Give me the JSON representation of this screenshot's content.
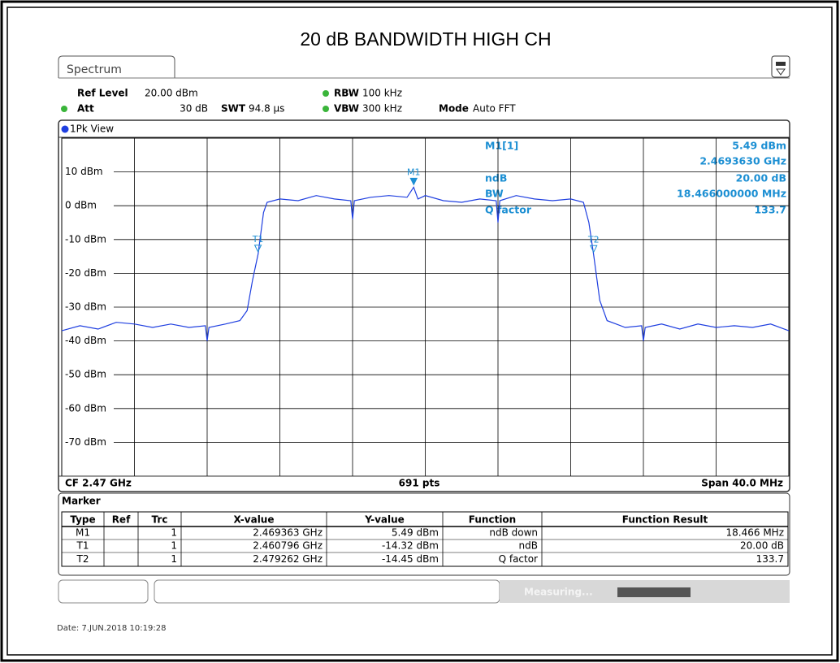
{
  "title": "20 dB BANDWIDTH HIGH CH",
  "tab": "Spectrum",
  "header": {
    "ref_level_label": "Ref Level",
    "ref_level": "20.00 dBm",
    "att_label": "Att",
    "att": "30 dB",
    "swt_label": "SWT",
    "swt": "94.8 µs",
    "rbw_label": "RBW",
    "rbw": "100 kHz",
    "vbw_label": "VBW",
    "vbw": "300 kHz",
    "mode_label": "Mode",
    "mode": "Auto FFT"
  },
  "view": "1Pk View",
  "chart_data": {
    "type": "line",
    "x": [
      2450,
      2451,
      2452,
      2453,
      2454,
      2455,
      2456,
      2457,
      2457.9,
      2458,
      2458.1,
      2459,
      2459.8,
      2460.2,
      2460.5,
      2460.8,
      2461.1,
      2461.3,
      2462,
      2463,
      2464,
      2465,
      2465.9,
      2466,
      2466.1,
      2467,
      2468,
      2469,
      2469.36,
      2469.6,
      2470,
      2471,
      2472,
      2473,
      2473.9,
      2474,
      2474.1,
      2475,
      2476,
      2477,
      2478,
      2478.7,
      2479,
      2479.26,
      2479.6,
      2480,
      2481,
      2481.9,
      2482,
      2482.1,
      2483,
      2484,
      2485,
      2486,
      2487,
      2488,
      2489,
      2490
    ],
    "values": [
      -37,
      -35.5,
      -36.5,
      -34.5,
      -35,
      -36,
      -35,
      -36,
      -35.5,
      -40,
      -36,
      -35,
      -34,
      -31,
      -22,
      -14.32,
      -2,
      1,
      2,
      1.5,
      3,
      2,
      1.5,
      -4,
      1.5,
      2.5,
      3,
      2.5,
      5.49,
      2,
      3,
      1.5,
      1,
      2,
      1.5,
      -5,
      1.5,
      3,
      2,
      1.5,
      2,
      1,
      -5,
      -14.45,
      -28,
      -34,
      -36,
      -35.5,
      -40,
      -36,
      -35,
      -36.5,
      -35,
      -36,
      -35.5,
      -36,
      -35,
      -37
    ],
    "color": "#1f3fe0",
    "xlim": [
      2450,
      2490
    ],
    "xticks": [
      2450,
      2454,
      2458,
      2462,
      2466,
      2470,
      2474,
      2478,
      2482,
      2486,
      2490
    ],
    "ylim": [
      -80,
      20
    ],
    "yticks": [
      {
        "value": 10,
        "label": "10 dBm"
      },
      {
        "value": 0,
        "label": "0 dBm"
      },
      {
        "value": -10,
        "label": "-10 dBm"
      },
      {
        "value": -20,
        "label": "-20 dBm"
      },
      {
        "value": -30,
        "label": "-30 dBm"
      },
      {
        "value": -40,
        "label": "-40 dBm"
      },
      {
        "value": -50,
        "label": "-50 dBm"
      },
      {
        "value": -60,
        "label": "-60 dBm"
      },
      {
        "value": -70,
        "label": "-70 dBm"
      }
    ],
    "grid": true,
    "markers": [
      {
        "label": "M1",
        "x": 2469.363,
        "y": 5.49
      },
      {
        "label": "T1",
        "x": 2460.796,
        "y": -14.32
      },
      {
        "label": "T2",
        "x": 2479.262,
        "y": -14.45
      }
    ]
  },
  "marker_info": {
    "m1": "M1[1]",
    "m1_level": "5.49 dBm",
    "m1_freq": "2.4693630 GHz",
    "ndb_label": "ndB",
    "ndb": "20.00 dB",
    "bw_label": "BW",
    "bw": "18.466000000 MHz",
    "q_label": "Q factor",
    "q": "133.7"
  },
  "footer": {
    "cf": "CF 2.47 GHz",
    "pts": "691 pts",
    "span": "Span 40.0 MHz"
  },
  "marker_table": {
    "title": "Marker",
    "columns": [
      "Type",
      "Ref",
      "Trc",
      "X-value",
      "Y-value",
      "Function",
      "Function Result"
    ],
    "rows": [
      [
        "M1",
        "",
        "1",
        "2.469363 GHz",
        "5.49 dBm",
        "ndB down",
        "18.466 MHz"
      ],
      [
        "T1",
        "",
        "1",
        "2.460796 GHz",
        "-14.32 dBm",
        "ndB",
        "20.00 dB"
      ],
      [
        "T2",
        "",
        "1",
        "2.479262 GHz",
        "-14.45 dBm",
        "Q factor",
        "133.7"
      ]
    ]
  },
  "status": "Measuring...",
  "date": "Date: 7.JUN.2018 10:19:28"
}
